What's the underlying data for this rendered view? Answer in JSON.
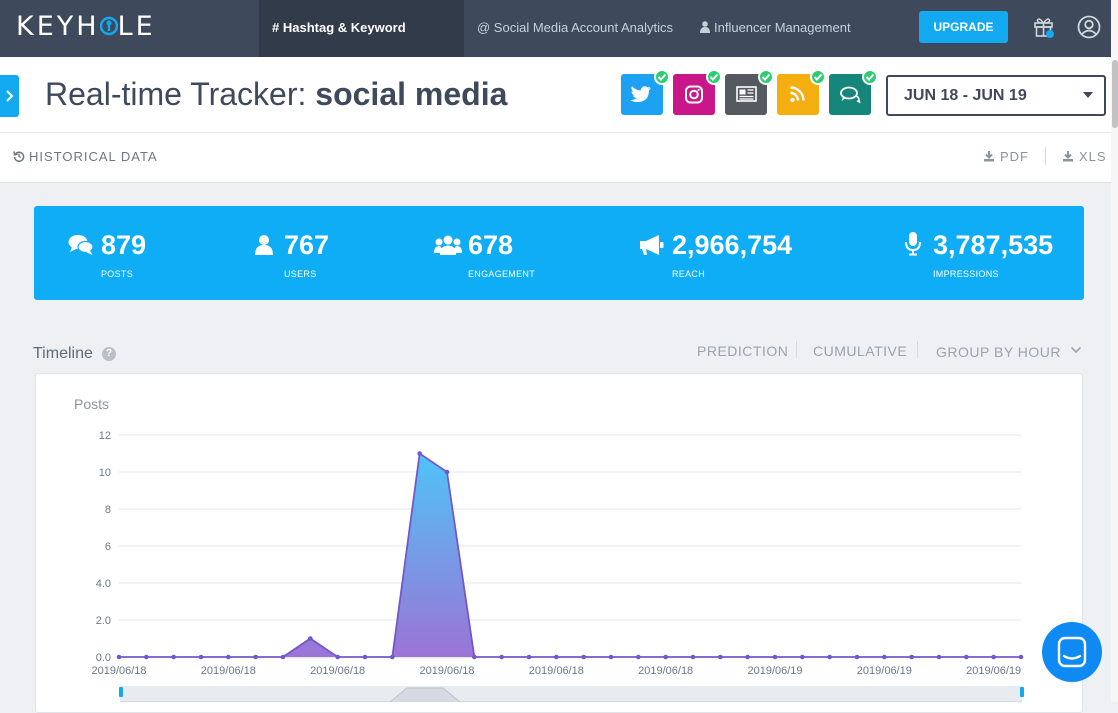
{
  "brand": {
    "logo_text_left": "KEYH",
    "logo_text_right": "LE"
  },
  "nav": {
    "tabs": [
      {
        "label": "# Hashtag & Keyword Tracking",
        "active": true
      },
      {
        "label": "@ Social Media Account Analytics",
        "active": false
      },
      {
        "label": "Influencer Management",
        "active": false
      }
    ],
    "upgrade_label": "UPGRADE"
  },
  "header": {
    "title_prefix": "Real-time Tracker: ",
    "title_keyword": "social media",
    "sources": [
      {
        "icon": "twitter-icon",
        "color": "#1da1f2",
        "checked": true
      },
      {
        "icon": "instagram-icon",
        "color": "#c9178a",
        "checked": true
      },
      {
        "icon": "news-icon",
        "color": "#555a60",
        "checked": true
      },
      {
        "icon": "rss-icon",
        "color": "#f5ae10",
        "checked": true
      },
      {
        "icon": "forum-icon",
        "color": "#16857a",
        "checked": true
      }
    ],
    "date_range": "JUN 18 - JUN 19"
  },
  "toolbar": {
    "historical_label": "HISTORICAL DATA",
    "pdf_label": "PDF",
    "xls_label": "XLS"
  },
  "stats": [
    {
      "icon": "comments-icon",
      "value": "879",
      "label": "POSTS"
    },
    {
      "icon": "user-icon",
      "value": "767",
      "label": "USERS"
    },
    {
      "icon": "users-icon",
      "value": "678",
      "label": "ENGAGEMENT"
    },
    {
      "icon": "megaphone-icon",
      "value": "2,966,754",
      "label": "REACH"
    },
    {
      "icon": "microphone-icon",
      "value": "3,787,535",
      "label": "IMPRESSIONS"
    }
  ],
  "timeline": {
    "title": "Timeline",
    "help": "?",
    "options": {
      "prediction": "PREDICTION",
      "cumulative": "CUMULATIVE",
      "group_by": "GROUP BY HOUR"
    }
  },
  "chart_data": {
    "type": "area",
    "title": "",
    "ylabel": "Posts",
    "xlabel": "",
    "ylim": [
      0,
      12
    ],
    "y_ticks": [
      "0.0",
      "2.0",
      "4.0",
      "6",
      "8",
      "10",
      "12"
    ],
    "x_tick_labels": [
      "2019/06/18",
      "2019/06/18",
      "2019/06/18",
      "2019/06/18",
      "2019/06/18",
      "2019/06/18",
      "2019/06/19",
      "2019/06/19",
      "2019/06/19"
    ],
    "series": [
      {
        "values": [
          0,
          0,
          0,
          0,
          0,
          0,
          0,
          1,
          0,
          0,
          0,
          11,
          10,
          0,
          0,
          0,
          0,
          0,
          0,
          0,
          0,
          0,
          0,
          0,
          0,
          0,
          0,
          0,
          0,
          0,
          0,
          0,
          0,
          0
        ]
      }
    ],
    "grid": true,
    "colors": {
      "line": "#7457c8",
      "fill_top": "#4fc3f7",
      "fill_bottom": "#9b74d6"
    }
  }
}
